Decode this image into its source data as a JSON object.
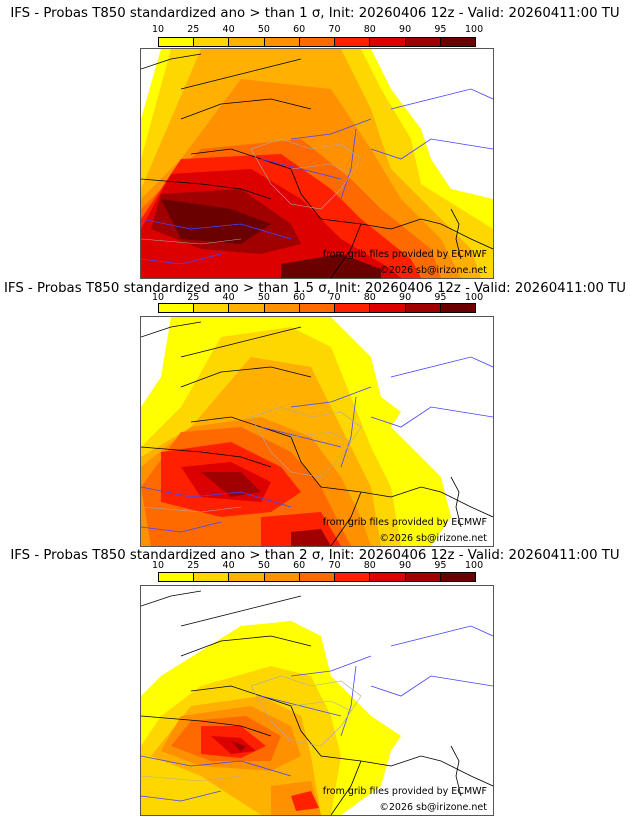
{
  "legend": {
    "ticks": [
      "10",
      "25",
      "40",
      "50",
      "60",
      "70",
      "80",
      "90",
      "95",
      "100"
    ],
    "colors": [
      "#ffff00",
      "#ffd700",
      "#ffb000",
      "#ff9000",
      "#ff6a00",
      "#ff2000",
      "#dd0000",
      "#a00000",
      "#6a0000"
    ]
  },
  "panels": [
    {
      "title": "IFS - Probas T850  standardized ano > than 1 σ, Init: 20260406 12z - Valid: 20260411:00 TU",
      "credit_source": "from grib files provided by ECMWF",
      "credit_copyright": "©2026 sb@irizone.net"
    },
    {
      "title": "IFS - Probas T850  standardized ano > than 1.5 σ, Init: 20260406 12z - Valid: 20260411:00 TU",
      "credit_source": "from grib files provided by ECMWF",
      "credit_copyright": "©2026 sb@irizone.net"
    },
    {
      "title": "IFS - Probas T850  standardized ano > than 2 σ, Init: 20260406 12z - Valid: 20260411:00 TU",
      "credit_source": "from grib files provided by ECMWF",
      "credit_copyright": "©2026 sb@irizone.net"
    }
  ]
}
